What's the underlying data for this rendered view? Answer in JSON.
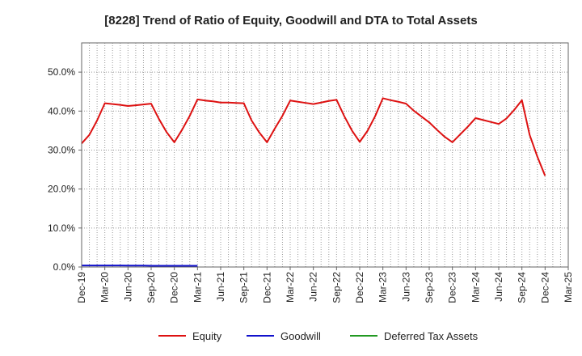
{
  "chart_data": {
    "type": "line",
    "title": "[8228]  Trend of Ratio of Equity, Goodwill and DTA to Total Assets",
    "xlabel": "",
    "ylabel": "",
    "ylim": [
      0,
      57.5
    ],
    "y_ticks": [
      0,
      10,
      20,
      30,
      40,
      50
    ],
    "y_tick_labels": [
      "0.0%",
      "10.0%",
      "20.0%",
      "30.0%",
      "40.0%",
      "50.0%"
    ],
    "x_ticks": [
      "Dec-19",
      "Mar-20",
      "Jun-20",
      "Sep-20",
      "Dec-20",
      "Mar-21",
      "Jun-21",
      "Sep-21",
      "Dec-21",
      "Mar-22",
      "Jun-22",
      "Sep-22",
      "Dec-22",
      "Mar-23",
      "Jun-23",
      "Sep-23",
      "Dec-23",
      "Mar-24",
      "Jun-24",
      "Sep-24",
      "Dec-24",
      "Mar-25"
    ],
    "grid": true,
    "legend_position": "bottom",
    "series": [
      {
        "name": "Equity",
        "color": "#dd1111",
        "x": [
          "Dec-19",
          "Jan-20",
          "Feb-20",
          "Mar-20",
          "Apr-20",
          "May-20",
          "Jun-20",
          "Jul-20",
          "Aug-20",
          "Sep-20",
          "Oct-20",
          "Nov-20",
          "Dec-20",
          "Jan-21",
          "Feb-21",
          "Mar-21",
          "Apr-21",
          "May-21",
          "Jun-21",
          "Jul-21",
          "Aug-21",
          "Sep-21",
          "Oct-21",
          "Nov-21",
          "Dec-21",
          "Jan-22",
          "Feb-22",
          "Mar-22",
          "Apr-22",
          "May-22",
          "Jun-22",
          "Jul-22",
          "Aug-22",
          "Sep-22",
          "Oct-22",
          "Nov-22",
          "Dec-22",
          "Jan-23",
          "Feb-23",
          "Mar-23",
          "Apr-23",
          "May-23",
          "Jun-23",
          "Jul-23",
          "Aug-23",
          "Sep-23",
          "Oct-23",
          "Nov-23",
          "Dec-23",
          "Jan-24",
          "Feb-24",
          "Mar-24",
          "Apr-24",
          "May-24",
          "Jun-24",
          "Jul-24",
          "Aug-24",
          "Sep-24",
          "Oct-24",
          "Nov-24",
          "Dec-24"
        ],
        "values": [
          31.7,
          33.9,
          37.6,
          42.0,
          41.8,
          41.6,
          41.3,
          41.5,
          41.7,
          41.9,
          38.0,
          34.6,
          32.0,
          35.2,
          38.8,
          43.0,
          42.7,
          42.5,
          42.2,
          42.2,
          42.1,
          42.0,
          37.6,
          34.5,
          32.0,
          35.5,
          38.8,
          42.7,
          42.4,
          42.1,
          41.8,
          42.2,
          42.6,
          42.9,
          38.7,
          35.0,
          32.1,
          34.9,
          38.7,
          43.3,
          42.8,
          42.4,
          41.9,
          40.1,
          38.6,
          37.1,
          35.2,
          33.4,
          32.0,
          34.0,
          36.0,
          38.2,
          37.7,
          37.2,
          36.7,
          38.1,
          40.3,
          42.8,
          33.9,
          28.3,
          23.4
        ]
      },
      {
        "name": "Goodwill",
        "color": "#1111cc",
        "x": [
          "Dec-19",
          "Jan-20",
          "Feb-20",
          "Mar-20",
          "Apr-20",
          "May-20",
          "Jun-20",
          "Jul-20",
          "Aug-20",
          "Sep-20",
          "Oct-20",
          "Nov-20",
          "Dec-20",
          "Jan-21",
          "Feb-21",
          "Mar-21"
        ],
        "values": [
          0.4,
          0.4,
          0.4,
          0.4,
          0.4,
          0.4,
          0.35,
          0.35,
          0.35,
          0.3,
          0.3,
          0.3,
          0.3,
          0.3,
          0.3,
          0.3
        ]
      },
      {
        "name": "Deferred Tax Assets",
        "color": "#229922",
        "x": [],
        "values": []
      }
    ]
  }
}
